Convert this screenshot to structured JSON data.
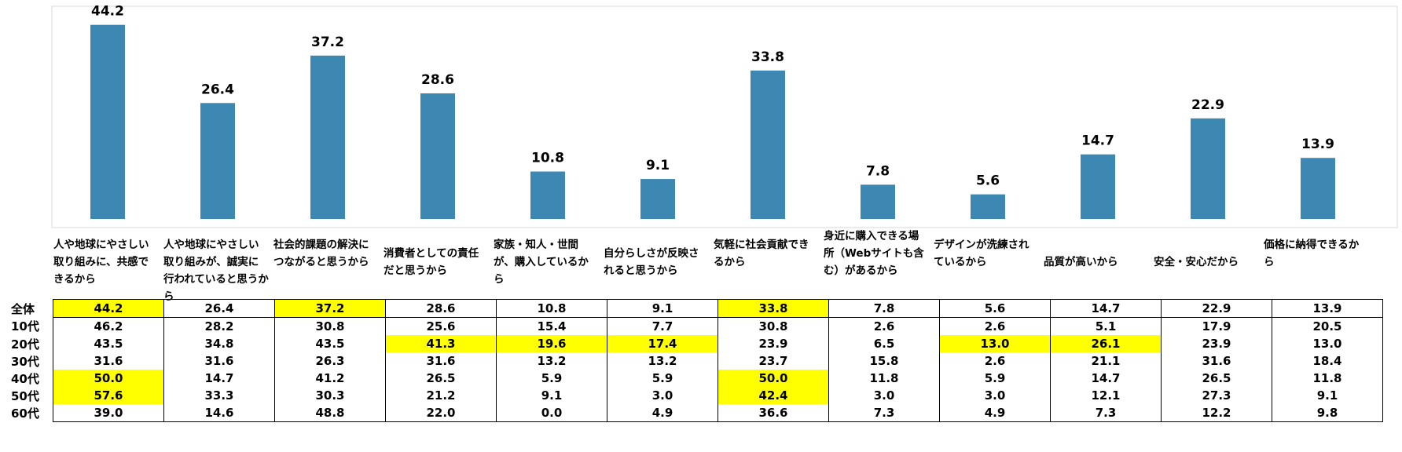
{
  "chart_data": {
    "type": "bar",
    "categories": [
      "人や地球にやさしい取り組みに、共感できるから",
      "人や地球にやさしい取り組みが、誠実に行われていると思うから",
      "社会的課題の解決につながると思うから",
      "消費者としての責任だと思うから",
      "家族・知人・世間が、購入しているから",
      "自分らしさが反映されると思うから",
      "気軽に社会貢献できるから",
      "身近に購入できる場所（Webサイトも含む）があるから",
      "デザインが洗練されているから",
      "品質が高いから",
      "安全・安心だから",
      "価格に納得できるから"
    ],
    "values": [
      44.2,
      26.4,
      37.2,
      28.6,
      10.8,
      9.1,
      33.8,
      7.8,
      5.6,
      14.7,
      22.9,
      13.9
    ],
    "value_labels": [
      "44.2",
      "26.4",
      "37.2",
      "28.6",
      "10.8",
      "9.1",
      "33.8",
      "7.8",
      "5.6",
      "14.7",
      "22.9",
      "13.9"
    ],
    "bar_color": "#3d87b3",
    "ylim": [
      0,
      47
    ],
    "highlight_color": "#ffff00"
  },
  "table": {
    "rows": [
      {
        "label": "全体",
        "values": [
          "44.2",
          "26.4",
          "37.2",
          "28.6",
          "10.8",
          "9.1",
          "33.8",
          "7.8",
          "5.6",
          "14.7",
          "22.9",
          "13.9"
        ],
        "highlight": [
          0,
          2,
          6
        ]
      },
      {
        "label": "10代",
        "values": [
          "46.2",
          "28.2",
          "30.8",
          "25.6",
          "15.4",
          "7.7",
          "30.8",
          "2.6",
          "2.6",
          "5.1",
          "17.9",
          "20.5"
        ],
        "highlight": []
      },
      {
        "label": "20代",
        "values": [
          "43.5",
          "34.8",
          "43.5",
          "41.3",
          "19.6",
          "17.4",
          "23.9",
          "6.5",
          "13.0",
          "26.1",
          "23.9",
          "13.0"
        ],
        "highlight": [
          3,
          4,
          5,
          8,
          9
        ]
      },
      {
        "label": "30代",
        "values": [
          "31.6",
          "31.6",
          "26.3",
          "31.6",
          "13.2",
          "13.2",
          "23.7",
          "15.8",
          "2.6",
          "21.1",
          "31.6",
          "18.4"
        ],
        "highlight": []
      },
      {
        "label": "40代",
        "values": [
          "50.0",
          "14.7",
          "41.2",
          "26.5",
          "5.9",
          "5.9",
          "50.0",
          "11.8",
          "5.9",
          "14.7",
          "26.5",
          "11.8"
        ],
        "highlight": [
          0,
          6
        ]
      },
      {
        "label": "50代",
        "values": [
          "57.6",
          "33.3",
          "30.3",
          "21.2",
          "9.1",
          "3.0",
          "42.4",
          "3.0",
          "3.0",
          "12.1",
          "27.3",
          "9.1"
        ],
        "highlight": [
          0,
          6
        ]
      },
      {
        "label": "60代",
        "values": [
          "39.0",
          "14.6",
          "48.8",
          "22.0",
          "0.0",
          "4.9",
          "36.6",
          "7.3",
          "4.9",
          "7.3",
          "12.2",
          "9.8"
        ],
        "highlight": []
      }
    ]
  }
}
